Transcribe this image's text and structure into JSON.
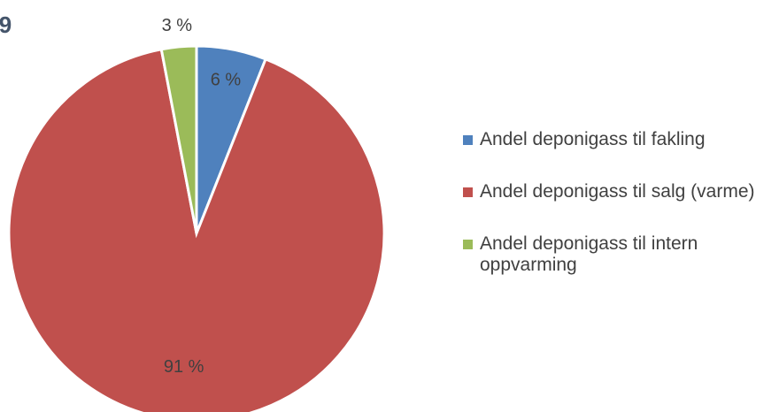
{
  "chart_data": {
    "type": "pie",
    "title": "9",
    "categories": [
      "Andel deponigass til fakling",
      "Andel deponigass til salg (varme)",
      "Andel deponigass til intern oppvarming"
    ],
    "values": [
      6,
      91,
      3
    ],
    "value_labels": [
      "6 %",
      "91 %",
      "3 %"
    ],
    "colors": [
      "#4f81bd",
      "#c0504d",
      "#9bbb59"
    ],
    "legend": "right"
  }
}
